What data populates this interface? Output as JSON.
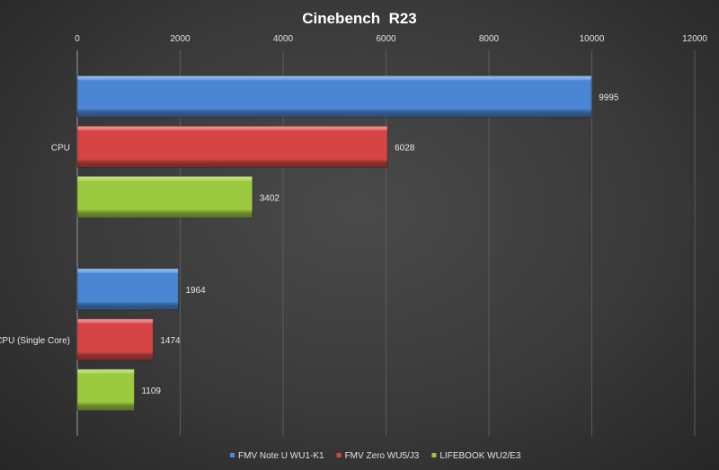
{
  "chart_data": {
    "type": "bar",
    "orientation": "horizontal",
    "title": "Cinebench  R23",
    "categories": [
      "CPU",
      "CPU (Single Core)"
    ],
    "series": [
      {
        "name": "FMV Note U WU1-K1",
        "color": "#4a86d4",
        "values": [
          9995,
          1964
        ]
      },
      {
        "name": "FMV Zero WU5/J3",
        "color": "#d64545",
        "values": [
          6028,
          1474
        ]
      },
      {
        "name": "LIFEBOOK WU2/E3",
        "color": "#9cc93f",
        "values": [
          3402,
          1109
        ]
      }
    ],
    "xlim": [
      0,
      12000
    ],
    "xticks": [
      "0",
      "2000",
      "4000",
      "6000",
      "8000",
      "10000",
      "12000"
    ],
    "x_axis_position": "top",
    "grid": true,
    "legend": "bottom",
    "data_labels": true
  }
}
